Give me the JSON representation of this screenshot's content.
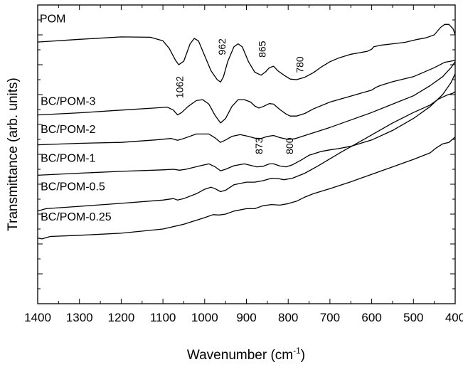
{
  "chart_data": {
    "type": "line",
    "title": "",
    "xlabel": "Wavenumber (cm",
    "xlabel_sup": "-1",
    "xlabel_close": ")",
    "ylabel": "Transmittance (arb. units)",
    "xlim": [
      1400,
      400
    ],
    "x_reversed": true,
    "ylim": [
      0,
      1
    ],
    "y_ticks_labeled": false,
    "x_ticks": [
      1400,
      1300,
      1200,
      1100,
      1000,
      900,
      800,
      700,
      600,
      500,
      400
    ],
    "x_tick_labels": [
      "1400",
      "1300",
      "1200",
      "1100",
      "1000",
      "900",
      "800",
      "700",
      "600",
      "500",
      "400"
    ],
    "grid": false,
    "series": [
      {
        "name": "POM",
        "label_at": [
          1395,
          0.942
        ],
        "points": [
          [
            1400,
            0.876
          ],
          [
            1300,
            0.885
          ],
          [
            1200,
            0.893
          ],
          [
            1130,
            0.892
          ],
          [
            1100,
            0.88
          ],
          [
            1085,
            0.855
          ],
          [
            1070,
            0.815
          ],
          [
            1062,
            0.8
          ],
          [
            1050,
            0.812
          ],
          [
            1035,
            0.87
          ],
          [
            1025,
            0.888
          ],
          [
            1015,
            0.88
          ],
          [
            1000,
            0.83
          ],
          [
            985,
            0.78
          ],
          [
            970,
            0.75
          ],
          [
            962,
            0.742
          ],
          [
            955,
            0.76
          ],
          [
            945,
            0.81
          ],
          [
            930,
            0.86
          ],
          [
            920,
            0.87
          ],
          [
            910,
            0.86
          ],
          [
            895,
            0.81
          ],
          [
            880,
            0.775
          ],
          [
            865,
            0.765
          ],
          [
            855,
            0.775
          ],
          [
            845,
            0.79
          ],
          [
            835,
            0.795
          ],
          [
            825,
            0.78
          ],
          [
            810,
            0.765
          ],
          [
            795,
            0.752
          ],
          [
            780,
            0.75
          ],
          [
            760,
            0.758
          ],
          [
            740,
            0.773
          ],
          [
            720,
            0.793
          ],
          [
            700,
            0.81
          ],
          [
            680,
            0.822
          ],
          [
            650,
            0.835
          ],
          [
            610,
            0.845
          ],
          [
            600,
            0.852
          ],
          [
            595,
            0.86
          ],
          [
            580,
            0.865
          ],
          [
            550,
            0.87
          ],
          [
            520,
            0.875
          ],
          [
            490,
            0.885
          ],
          [
            470,
            0.89
          ],
          [
            450,
            0.9
          ],
          [
            435,
            0.925
          ],
          [
            425,
            0.935
          ],
          [
            415,
            0.935
          ],
          [
            405,
            0.92
          ],
          [
            400,
            0.9
          ]
        ]
      },
      {
        "name": "BC/POM-3",
        "label_at": [
          1393,
          0.665
        ],
        "points": [
          [
            1400,
            0.632
          ],
          [
            1300,
            0.639
          ],
          [
            1200,
            0.648
          ],
          [
            1120,
            0.655
          ],
          [
            1090,
            0.658
          ],
          [
            1075,
            0.648
          ],
          [
            1065,
            0.632
          ],
          [
            1055,
            0.64
          ],
          [
            1040,
            0.66
          ],
          [
            1020,
            0.68
          ],
          [
            1005,
            0.683
          ],
          [
            990,
            0.668
          ],
          [
            975,
            0.63
          ],
          [
            962,
            0.605
          ],
          [
            950,
            0.62
          ],
          [
            935,
            0.66
          ],
          [
            920,
            0.683
          ],
          [
            905,
            0.683
          ],
          [
            890,
            0.675
          ],
          [
            880,
            0.662
          ],
          [
            870,
            0.655
          ],
          [
            860,
            0.66
          ],
          [
            845,
            0.67
          ],
          [
            835,
            0.668
          ],
          [
            820,
            0.65
          ],
          [
            805,
            0.635
          ],
          [
            795,
            0.628
          ],
          [
            780,
            0.628
          ],
          [
            760,
            0.637
          ],
          [
            740,
            0.652
          ],
          [
            700,
            0.675
          ],
          [
            650,
            0.695
          ],
          [
            600,
            0.715
          ],
          [
            590,
            0.724
          ],
          [
            580,
            0.73
          ],
          [
            550,
            0.743
          ],
          [
            500,
            0.76
          ],
          [
            450,
            0.79
          ],
          [
            425,
            0.808
          ],
          [
            410,
            0.812
          ],
          [
            400,
            0.815
          ]
        ]
      },
      {
        "name": "BC/POM-2",
        "label_at": [
          1393,
          0.572
        ],
        "points": [
          [
            1400,
            0.532
          ],
          [
            1300,
            0.537
          ],
          [
            1200,
            0.54
          ],
          [
            1120,
            0.548
          ],
          [
            1080,
            0.553
          ],
          [
            1065,
            0.547
          ],
          [
            1050,
            0.553
          ],
          [
            1020,
            0.568
          ],
          [
            990,
            0.568
          ],
          [
            975,
            0.555
          ],
          [
            962,
            0.54
          ],
          [
            950,
            0.548
          ],
          [
            935,
            0.56
          ],
          [
            915,
            0.566
          ],
          [
            895,
            0.56
          ],
          [
            880,
            0.554
          ],
          [
            865,
            0.553
          ],
          [
            850,
            0.56
          ],
          [
            835,
            0.563
          ],
          [
            820,
            0.556
          ],
          [
            800,
            0.55
          ],
          [
            785,
            0.552
          ],
          [
            760,
            0.563
          ],
          [
            700,
            0.59
          ],
          [
            650,
            0.615
          ],
          [
            600,
            0.64
          ],
          [
            550,
            0.668
          ],
          [
            500,
            0.696
          ],
          [
            460,
            0.73
          ],
          [
            430,
            0.76
          ],
          [
            410,
            0.79
          ],
          [
            400,
            0.81
          ]
        ]
      },
      {
        "name": "BC/POM-1",
        "label_at": [
          1393,
          0.475
        ],
        "points": [
          [
            1400,
            0.43
          ],
          [
            1300,
            0.437
          ],
          [
            1200,
            0.443
          ],
          [
            1100,
            0.448
          ],
          [
            1075,
            0.45
          ],
          [
            1060,
            0.447
          ],
          [
            1045,
            0.45
          ],
          [
            1010,
            0.462
          ],
          [
            990,
            0.468
          ],
          [
            975,
            0.458
          ],
          [
            962,
            0.445
          ],
          [
            950,
            0.45
          ],
          [
            930,
            0.462
          ],
          [
            905,
            0.468
          ],
          [
            890,
            0.463
          ],
          [
            875,
            0.458
          ],
          [
            860,
            0.46
          ],
          [
            845,
            0.468
          ],
          [
            835,
            0.468
          ],
          [
            820,
            0.461
          ],
          [
            805,
            0.458
          ],
          [
            790,
            0.465
          ],
          [
            770,
            0.48
          ],
          [
            750,
            0.497
          ],
          [
            720,
            0.51
          ],
          [
            700,
            0.515
          ],
          [
            680,
            0.519
          ],
          [
            650,
            0.527
          ],
          [
            600,
            0.548
          ],
          [
            550,
            0.58
          ],
          [
            500,
            0.62
          ],
          [
            460,
            0.66
          ],
          [
            430,
            0.7
          ],
          [
            410,
            0.74
          ],
          [
            400,
            0.77
          ]
        ]
      },
      {
        "name": "BC/POM-0.5",
        "label_at": [
          1393,
          0.38
        ],
        "points": [
          [
            1400,
            0.31
          ],
          [
            1380,
            0.318
          ],
          [
            1300,
            0.326
          ],
          [
            1200,
            0.336
          ],
          [
            1100,
            0.347
          ],
          [
            1075,
            0.352
          ],
          [
            1065,
            0.347
          ],
          [
            1050,
            0.352
          ],
          [
            1020,
            0.368
          ],
          [
            1000,
            0.383
          ],
          [
            985,
            0.39
          ],
          [
            975,
            0.385
          ],
          [
            962,
            0.375
          ],
          [
            950,
            0.38
          ],
          [
            930,
            0.398
          ],
          [
            900,
            0.407
          ],
          [
            880,
            0.407
          ],
          [
            860,
            0.412
          ],
          [
            840,
            0.42
          ],
          [
            825,
            0.419
          ],
          [
            810,
            0.415
          ],
          [
            790,
            0.42
          ],
          [
            760,
            0.437
          ],
          [
            730,
            0.46
          ],
          [
            700,
            0.485
          ],
          [
            670,
            0.51
          ],
          [
            640,
            0.533
          ],
          [
            600,
            0.565
          ],
          [
            550,
            0.605
          ],
          [
            500,
            0.64
          ],
          [
            460,
            0.665
          ],
          [
            440,
            0.685
          ],
          [
            420,
            0.698
          ],
          [
            405,
            0.705
          ],
          [
            400,
            0.71
          ]
        ]
      },
      {
        "name": "BC/POM-0.25",
        "label_at": [
          1393,
          0.278
        ],
        "points": [
          [
            1400,
            0.22
          ],
          [
            1390,
            0.217
          ],
          [
            1370,
            0.225
          ],
          [
            1300,
            0.229
          ],
          [
            1200,
            0.236
          ],
          [
            1100,
            0.25
          ],
          [
            1050,
            0.266
          ],
          [
            1000,
            0.288
          ],
          [
            980,
            0.298
          ],
          [
            965,
            0.297
          ],
          [
            950,
            0.3
          ],
          [
            930,
            0.31
          ],
          [
            900,
            0.318
          ],
          [
            880,
            0.318
          ],
          [
            860,
            0.328
          ],
          [
            840,
            0.332
          ],
          [
            820,
            0.33
          ],
          [
            800,
            0.335
          ],
          [
            780,
            0.343
          ],
          [
            760,
            0.357
          ],
          [
            740,
            0.368
          ],
          [
            700,
            0.385
          ],
          [
            650,
            0.408
          ],
          [
            600,
            0.433
          ],
          [
            550,
            0.458
          ],
          [
            500,
            0.483
          ],
          [
            460,
            0.505
          ],
          [
            445,
            0.522
          ],
          [
            430,
            0.535
          ],
          [
            415,
            0.54
          ],
          [
            405,
            0.552
          ],
          [
            400,
            0.558
          ]
        ]
      }
    ],
    "annotations": [
      {
        "text": "1062",
        "at": [
          1052,
          0.725
        ],
        "rotate": -90
      },
      {
        "text": "962",
        "at": [
          950,
          0.86
        ],
        "rotate": -90
      },
      {
        "text": "865",
        "at": [
          854,
          0.852
        ],
        "rotate": -90
      },
      {
        "text": "780",
        "at": [
          764,
          0.8
        ],
        "rotate": -90
      },
      {
        "text": "873",
        "at": [
          862,
          0.528
        ],
        "rotate": -90
      },
      {
        "text": "800",
        "at": [
          788,
          0.528
        ],
        "rotate": -90
      }
    ]
  }
}
